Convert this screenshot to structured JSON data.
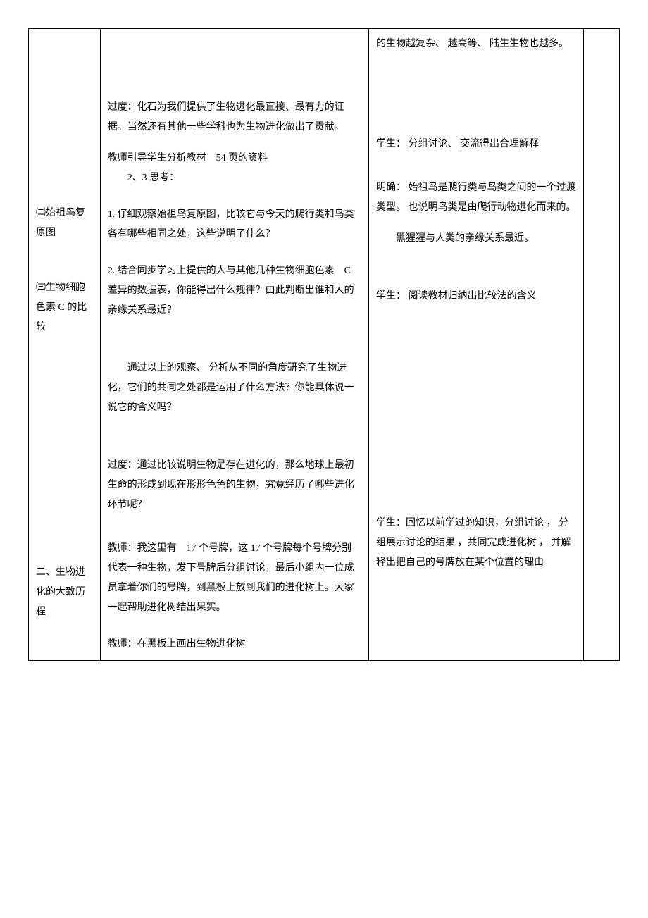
{
  "table": {
    "col1": {
      "section2": "㈡始祖鸟复原图",
      "section3": "㈢生物细胞色素 C 的比较",
      "section4": "二、生物进化的大致历程"
    },
    "col2": {
      "p1": "过度：化石为我们提供了生物进化最直接、最有力的证据。当然还有其他一些学科也为生物进化做出了贡献。",
      "p2a": "教师引导学生分析教材　54 页的资料",
      "p2b": "2、3 思考：",
      "p3": "1. 仔细观察始祖鸟复原图，比较它与今天的爬行类和鸟类各有哪些相同之处，这些说明了什么？",
      "p4": "2. 结合同步学习上提供的人与其他几种生物细胞色素　C 差异的数据表，你能得出什么规律？由此判断出谁和人的亲缘关系最近？",
      "p5": "通过以上的观察、 分析从不同的角度研究了生物进化，它们的共同之处都是运用了什么方法？你能具体说一说它的含义吗？",
      "p6": "过度：通过比较说明生物是存在进化的，那么地球上最初生命的形成到现在形形色色的生物，究竟经历了哪些进化环节呢？",
      "p7": "教师：我这里有　17 个号牌，这 17 个号牌每个号牌分别代表一种生物，发下号牌后分组讨论，最后小组内一位成员拿着你们的号牌，到黑板上放到我们的进化树上。大家一起帮助进化树结出果实。",
      "p8": "教师：在黑板上画出生物进化树"
    },
    "col3": {
      "p1": "的生物越复杂、 越高等、 陆生生物也越多。",
      "p2": "学生： 分组讨论、 交流得出合理解释",
      "p3": "明确： 始祖鸟是爬行类与鸟类之间的一个过渡类型。 也说明鸟类是由爬行动物进化而来的。",
      "p4": "　　黑猩猩与人类的亲缘关系最近。",
      "p5": "学生： 阅读教材归纳出比较法的含义",
      "p6": "学生：回忆以前学过的知识，分组讨论 ， 分组展示讨论的结果 ，共同完成进化树 ， 并解释出把自己的号牌放在某个位置的理由"
    }
  }
}
